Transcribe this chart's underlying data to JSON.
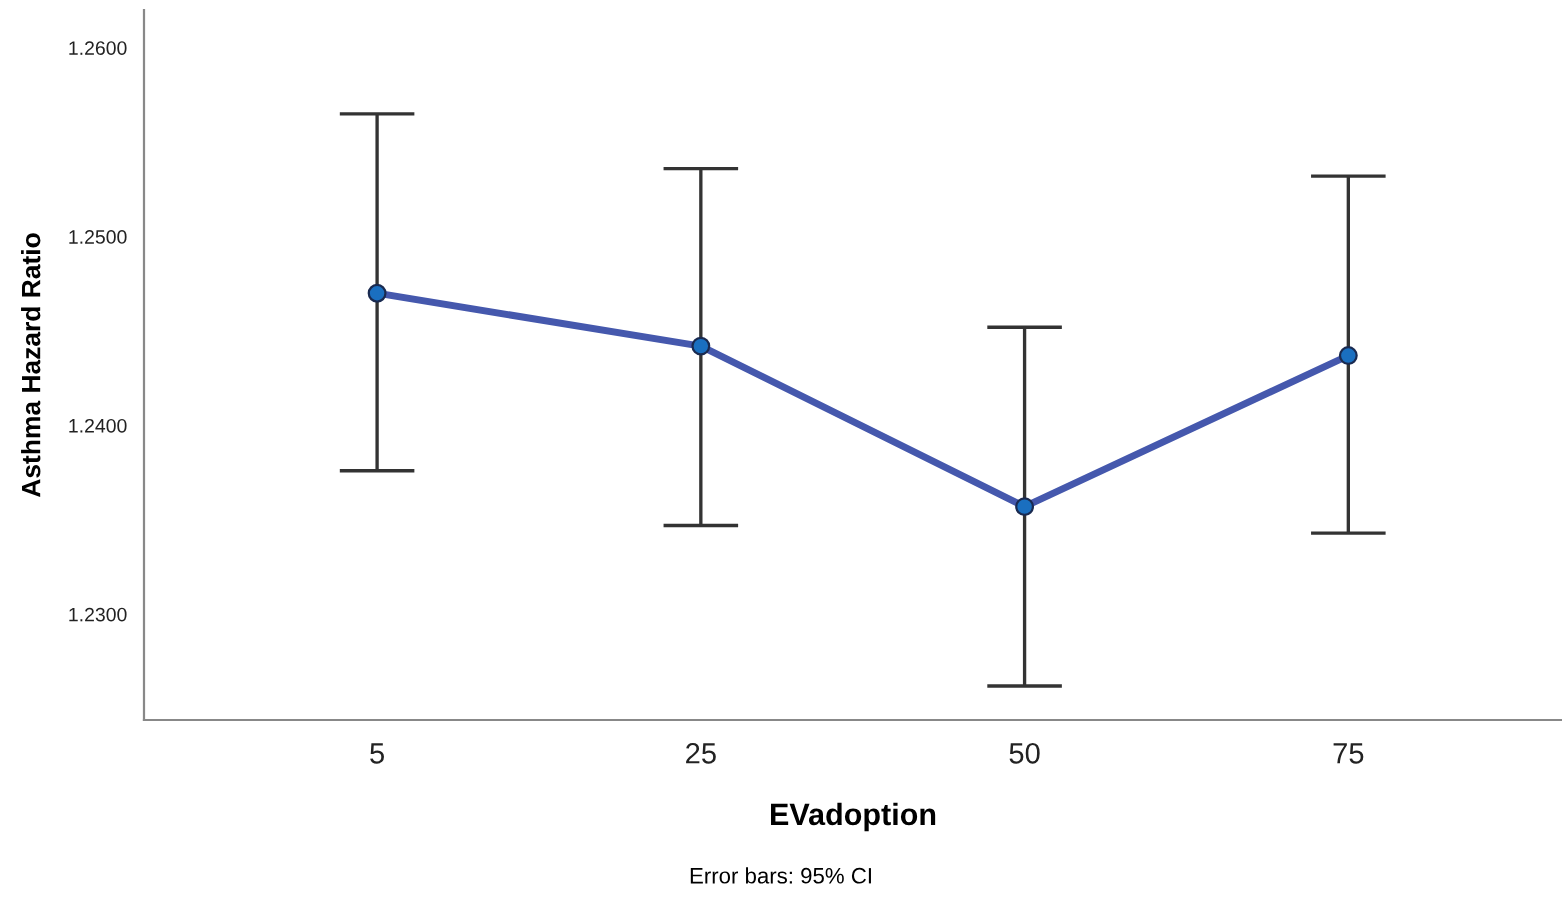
{
  "chart_data": {
    "type": "line",
    "xlabel": "EVadoption",
    "ylabel": "Asthma Hazard Ratio",
    "categories": [
      "5",
      "25",
      "50",
      "75"
    ],
    "series": [
      {
        "color": "#4558ad",
        "values": [
          1.247,
          1.2442,
          1.2357,
          1.2437
        ],
        "errors": [
          [
            1.2376,
            1.2565
          ],
          [
            1.2347,
            1.2536
          ],
          [
            1.2262,
            1.2452
          ],
          [
            1.2343,
            1.2532
          ]
        ]
      }
    ],
    "ylim": [
      1.2244,
      1.262
    ],
    "yticks": [
      {
        "value": 1.23,
        "label": "1.2300"
      },
      {
        "value": 1.24,
        "label": "1.2400"
      },
      {
        "value": 1.25,
        "label": "1.2500"
      },
      {
        "value": 1.26,
        "label": "1.2600"
      }
    ],
    "marker": "circle",
    "line_style": "solid",
    "grid": false,
    "annotations": [
      "Error bars: 95% CI"
    ]
  }
}
